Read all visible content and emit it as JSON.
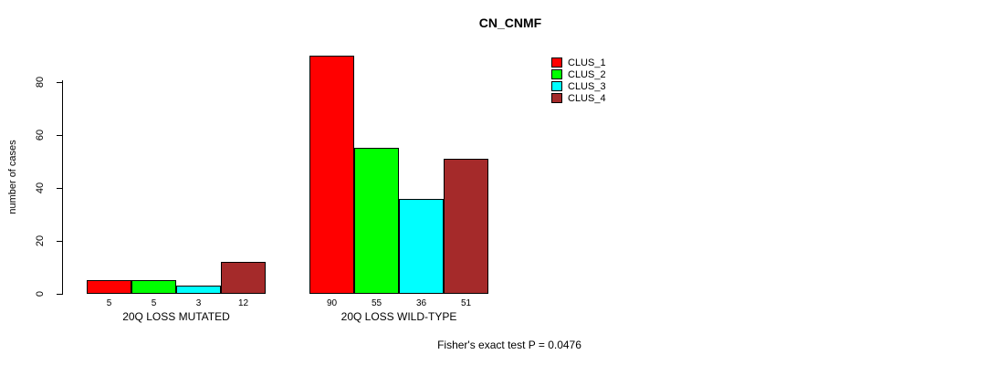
{
  "title": "CN_CNMF",
  "footer_note": "Fisher's exact test P = 0.0476",
  "chart_data": {
    "type": "bar",
    "title": "CN_CNMF",
    "xlabel": "",
    "ylabel": "number of cases",
    "ylim": [
      0,
      90
    ],
    "yticks": [
      0,
      20,
      40,
      60,
      80
    ],
    "grid": false,
    "legend_position": "top-right",
    "categories": [
      "20Q LOSS MUTATED",
      "20Q LOSS WILD-TYPE"
    ],
    "series": [
      {
        "name": "CLUS_1",
        "color": "#FF0000",
        "values": [
          5,
          90
        ]
      },
      {
        "name": "CLUS_2",
        "color": "#00FF00",
        "values": [
          5,
          55
        ]
      },
      {
        "name": "CLUS_3",
        "color": "#00FFFF",
        "values": [
          3,
          36
        ]
      },
      {
        "name": "CLUS_4",
        "color": "#A52A2A",
        "values": [
          12,
          51
        ]
      }
    ],
    "bar_value_labels": [
      [
        5,
        5,
        3,
        12
      ],
      [
        90,
        55,
        36,
        51
      ]
    ],
    "annotation": "Fisher's exact test P = 0.0476"
  },
  "colors": {
    "background": "#FFFFFF",
    "axis": "#000000",
    "text": "#000000"
  }
}
